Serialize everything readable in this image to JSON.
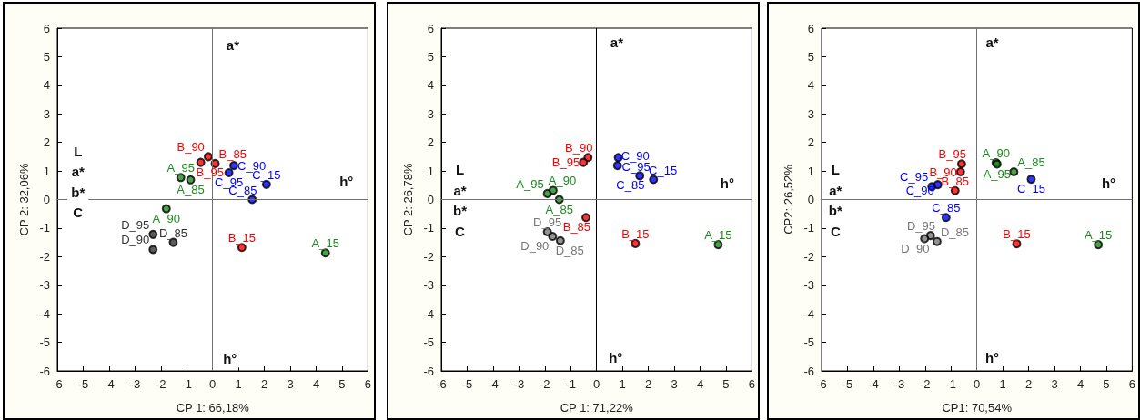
{
  "chart_data": [
    {
      "type": "scatter",
      "xlabel": "CP 1: 66,18%",
      "ylabel": "CP 2: 32,06%",
      "xlim": [
        -6,
        6
      ],
      "ylim": [
        -6,
        6
      ],
      "xticks": [
        -6,
        -5,
        -4,
        -3,
        -2,
        -1,
        0,
        1,
        2,
        3,
        4,
        5,
        6
      ],
      "yticks": [
        -6,
        -5,
        -4,
        -3,
        -2,
        -1,
        0,
        1,
        2,
        3,
        4,
        5,
        6
      ],
      "marker": "circle",
      "ref_lines": [
        {
          "axis": "x",
          "value": 0,
          "color": "#707070"
        },
        {
          "axis": "y",
          "value": 0,
          "color": "#707070"
        }
      ],
      "series": [
        {
          "color": "#1a8c1a",
          "x": [
            4.36,
            -1.79,
            -1.23,
            -0.85
          ],
          "values": [
            -1.87,
            -0.32,
            0.77,
            0.69
          ]
        },
        {
          "color": "#ff0000",
          "x": [
            1.13,
            -0.17,
            -0.46,
            0.1
          ],
          "values": [
            -1.68,
            1.5,
            1.3,
            1.26
          ]
        },
        {
          "color": "#0000ff",
          "x": [
            2.08,
            1.53,
            0.82,
            0.63
          ],
          "values": [
            0.53,
            0.0,
            1.19,
            0.94
          ]
        },
        {
          "color": "#333333",
          "x": [
            -2.3,
            -2.3,
            -1.52
          ],
          "values": [
            -1.22,
            -1.75,
            -1.5
          ]
        }
      ],
      "annotations": [
        {
          "text": "A_15",
          "x": 4.36,
          "y": -1.87
        },
        {
          "text": "A_90",
          "x": -1.79,
          "y": -0.32
        },
        {
          "text": "A_95",
          "x": -1.23,
          "y": 0.77
        },
        {
          "text": "A_85",
          "x": -0.85,
          "y": 0.69
        },
        {
          "text": "B_15",
          "x": 1.13,
          "y": -1.68
        },
        {
          "text": "B_90",
          "x": -0.17,
          "y": 1.5
        },
        {
          "text": "B_95",
          "x": -0.46,
          "y": 1.3
        },
        {
          "text": "B_85",
          "x": 0.1,
          "y": 1.26
        },
        {
          "text": "C_15",
          "x": 2.08,
          "y": 0.53
        },
        {
          "text": "C_85",
          "x": 1.53,
          "y": 0.0
        },
        {
          "text": "C_90",
          "x": 0.82,
          "y": 1.19
        },
        {
          "text": "C_95",
          "x": 0.63,
          "y": 0.94
        },
        {
          "text": "D_95",
          "x": -2.3,
          "y": -1.22
        },
        {
          "text": "D_90",
          "x": -2.3,
          "y": -1.75
        },
        {
          "text": "D_85",
          "x": -1.52,
          "y": -1.5
        },
        {
          "text": "L",
          "x": -5.2,
          "y": 1.68
        },
        {
          "text": "a*",
          "x": -5.2,
          "y": 1.0
        },
        {
          "text": "b*",
          "x": -5.2,
          "y": 0.26
        },
        {
          "text": "C",
          "x": -5.2,
          "y": -0.45
        },
        {
          "text": "a*",
          "x": 0.78,
          "y": 5.42
        },
        {
          "text": "h°",
          "x": 5.17,
          "y": 0.63
        },
        {
          "text": "h°",
          "x": 0.67,
          "y": -5.58
        }
      ]
    },
    {
      "type": "scatter",
      "xlabel": "CP 1: 71,22%",
      "ylabel": "CP 2: 26,78%",
      "xlim": [
        -6,
        6
      ],
      "ylim": [
        -6,
        6
      ],
      "xticks": [
        -6,
        -5,
        -4,
        -3,
        -2,
        -1,
        0,
        1,
        2,
        3,
        4,
        5,
        6
      ],
      "yticks": [
        -6,
        -5,
        -4,
        -3,
        -2,
        -1,
        0,
        1,
        2,
        3,
        4,
        5,
        6
      ],
      "marker": "circle",
      "ref_lines": [
        {
          "axis": "x",
          "value": 0,
          "color": "#000000"
        },
        {
          "axis": "y",
          "value": 0,
          "color": "#707070"
        }
      ],
      "series": [
        {
          "color": "#1a8c1a",
          "x": [
            4.7,
            -1.9,
            -1.68,
            -1.44
          ],
          "values": [
            -1.58,
            0.21,
            0.32,
            0.0
          ]
        },
        {
          "color": "#ff0000",
          "x": [
            1.5,
            -0.41,
            -0.33,
            -0.51
          ],
          "values": [
            -1.54,
            -0.63,
            1.47,
            1.3
          ]
        },
        {
          "color": "#0000ff",
          "x": [
            2.2,
            1.67,
            0.81,
            0.84
          ],
          "values": [
            0.7,
            0.83,
            1.19,
            1.47
          ]
        },
        {
          "color": "#777777",
          "x": [
            -1.9,
            -1.7,
            -1.4
          ],
          "values": [
            -1.13,
            -1.29,
            -1.44
          ]
        }
      ],
      "annotations": [
        {
          "text": "A_15",
          "x": 4.7,
          "y": -1.58
        },
        {
          "text": "A_95",
          "x": -1.9,
          "y": 0.21
        },
        {
          "text": "A_90",
          "x": -1.68,
          "y": 0.32
        },
        {
          "text": "A_85",
          "x": -1.44,
          "y": 0.0
        },
        {
          "text": "B_15",
          "x": 1.5,
          "y": -1.54
        },
        {
          "text": "B_85",
          "x": -0.41,
          "y": -0.63
        },
        {
          "text": "B_90",
          "x": -0.33,
          "y": 1.47
        },
        {
          "text": "B_95",
          "x": -0.51,
          "y": 1.3
        },
        {
          "text": "C_15",
          "x": 2.2,
          "y": 0.7
        },
        {
          "text": "C_85",
          "x": 1.67,
          "y": 0.83
        },
        {
          "text": "C_90",
          "x": 0.81,
          "y": 1.19
        },
        {
          "text": "C_95",
          "x": 0.84,
          "y": 1.47
        },
        {
          "text": "D_95",
          "x": -1.9,
          "y": -1.13
        },
        {
          "text": "D_90",
          "x": -1.7,
          "y": -1.29
        },
        {
          "text": "D_85",
          "x": -1.4,
          "y": -1.44
        },
        {
          "text": "L",
          "x": -5.28,
          "y": 1.05
        },
        {
          "text": "a*",
          "x": -5.28,
          "y": 0.32
        },
        {
          "text": "b*",
          "x": -5.28,
          "y": -0.37
        },
        {
          "text": "C",
          "x": -5.28,
          "y": -1.1
        },
        {
          "text": "a*",
          "x": 0.78,
          "y": 5.52
        },
        {
          "text": "h°",
          "x": 5.05,
          "y": 0.58
        },
        {
          "text": "h°",
          "x": 0.74,
          "y": -5.54
        }
      ]
    },
    {
      "type": "scatter",
      "xlabel": "CP1: 70,54%",
      "ylabel": "CP2: 26,52%",
      "xlim": [
        -6,
        6
      ],
      "ylim": [
        -6,
        6
      ],
      "xticks": [
        -6,
        -5,
        -4,
        -3,
        -2,
        -1,
        0,
        1,
        2,
        3,
        4,
        5,
        6
      ],
      "yticks": [
        -6,
        -5,
        -4,
        -3,
        -2,
        -1,
        0,
        1,
        2,
        3,
        4,
        5,
        6
      ],
      "marker": "circle",
      "ref_lines": [
        {
          "axis": "x",
          "value": 0,
          "color": "#707070"
        },
        {
          "axis": "y",
          "value": 0,
          "color": "#707070"
        }
      ],
      "series": [
        {
          "color": "#1a8c1a",
          "x": [
            4.69,
            0.74,
            0.78,
            1.43
          ],
          "values": [
            -1.58,
            1.29,
            1.24,
            0.97
          ]
        },
        {
          "color": "#ff0000",
          "x": [
            1.54,
            -0.59,
            -0.63,
            -0.84
          ],
          "values": [
            -1.55,
            1.25,
            0.97,
            0.31
          ]
        },
        {
          "color": "#0000ff",
          "x": [
            2.1,
            -1.74,
            -1.51,
            -1.19
          ],
          "values": [
            0.71,
            0.45,
            0.52,
            -0.63
          ]
        },
        {
          "color": "#777777",
          "x": [
            -1.79,
            -2.02,
            -1.54
          ],
          "values": [
            -1.26,
            -1.37,
            -1.47
          ]
        }
      ],
      "annotations": [
        {
          "text": "A_15",
          "x": 4.69,
          "y": -1.58
        },
        {
          "text": "A_90",
          "x": 0.74,
          "y": 1.29
        },
        {
          "text": "A_95",
          "x": 0.78,
          "y": 1.24
        },
        {
          "text": "A_85",
          "x": 1.43,
          "y": 0.97
        },
        {
          "text": "B_15",
          "x": 1.54,
          "y": -1.55
        },
        {
          "text": "B_95",
          "x": -0.59,
          "y": 1.25
        },
        {
          "text": "B_90",
          "x": -0.63,
          "y": 0.97
        },
        {
          "text": "B_85",
          "x": -0.84,
          "y": 0.31
        },
        {
          "text": "C_15",
          "x": 2.1,
          "y": 0.71
        },
        {
          "text": "C_95",
          "x": -1.74,
          "y": 0.45
        },
        {
          "text": "C_90",
          "x": -1.51,
          "y": 0.52
        },
        {
          "text": "C_85",
          "x": -1.19,
          "y": -0.63
        },
        {
          "text": "D_95",
          "x": -1.79,
          "y": -1.26
        },
        {
          "text": "D_90",
          "x": -2.02,
          "y": -1.37
        },
        {
          "text": "D_85",
          "x": -1.54,
          "y": -1.47
        },
        {
          "text": "L",
          "x": -5.46,
          "y": 1.05
        },
        {
          "text": "a*",
          "x": -5.46,
          "y": 0.32
        },
        {
          "text": "b*",
          "x": -5.46,
          "y": -0.37
        },
        {
          "text": "C",
          "x": -5.46,
          "y": -1.1
        },
        {
          "text": "a*",
          "x": 0.59,
          "y": 5.52
        },
        {
          "text": "h°",
          "x": 5.09,
          "y": 0.58
        },
        {
          "text": "h°",
          "x": 0.59,
          "y": -5.54
        }
      ]
    }
  ]
}
